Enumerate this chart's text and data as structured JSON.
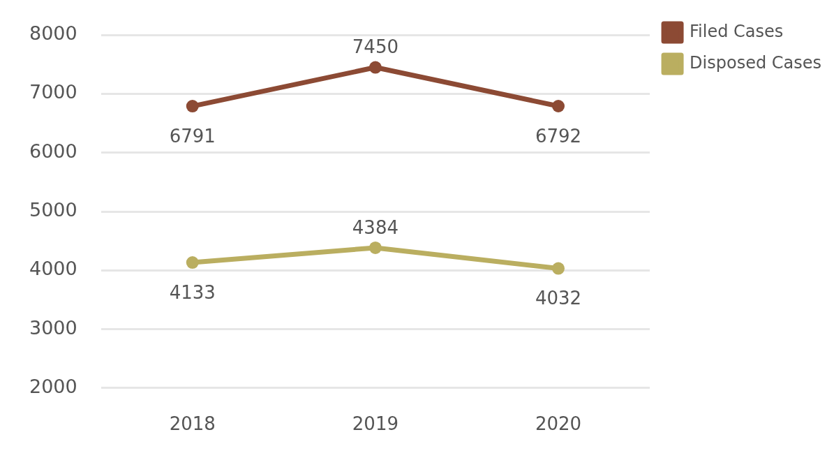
{
  "chart_data": {
    "type": "line",
    "categories": [
      "2018",
      "2019",
      "2020"
    ],
    "series": [
      {
        "name": "Filed Cases",
        "color": "#8c4a34",
        "values": [
          6791,
          7450,
          6792
        ]
      },
      {
        "name": "Disposed Cases",
        "color": "#baae60",
        "values": [
          4133,
          4384,
          4032
        ]
      }
    ],
    "ylim": [
      2000,
      8000
    ],
    "yticks": [
      2000,
      3000,
      4000,
      5000,
      6000,
      7000,
      8000
    ],
    "grid": "y",
    "legend": "top right",
    "marker": "circle",
    "data_labels": true
  }
}
